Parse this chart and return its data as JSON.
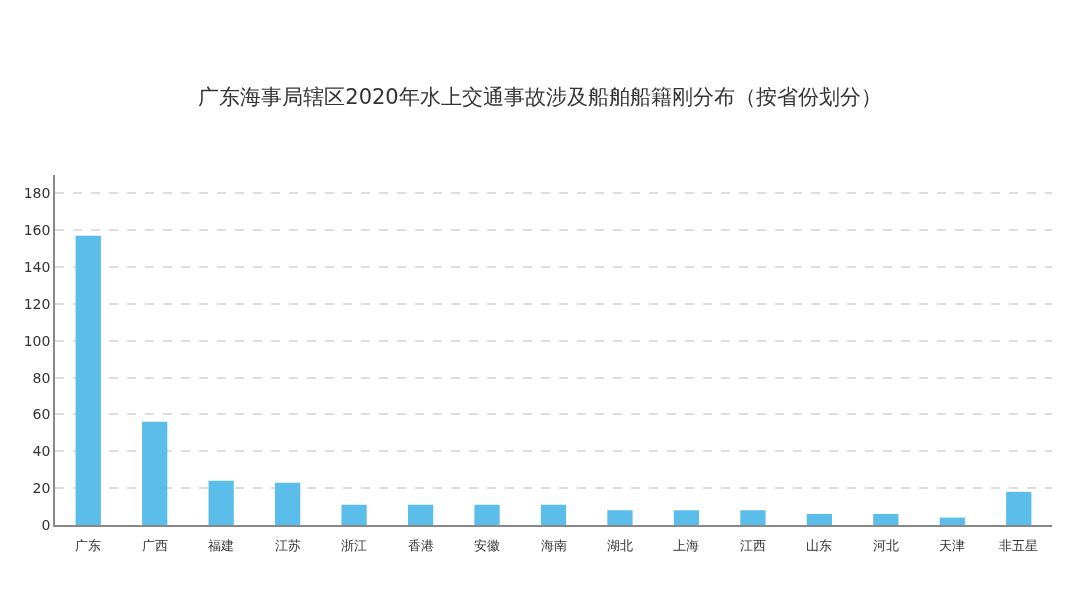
{
  "chart_data": {
    "type": "bar",
    "title": "广东海事局辖区2020年水上交通事故涉及船舶船籍刚分布（按省份划分）",
    "categories": [
      "广东",
      "广西",
      "福建",
      "江苏",
      "浙江",
      "香港",
      "安徽",
      "海南",
      "湖北",
      "上海",
      "江西",
      "山东",
      "河北",
      "天津",
      "非五星"
    ],
    "values": [
      157,
      56,
      24,
      23,
      11,
      11,
      11,
      11,
      8,
      8,
      8,
      6,
      6,
      4,
      18
    ],
    "color": "#5bbde9",
    "ylim": [
      0,
      190
    ],
    "yticks": [
      0,
      20,
      40,
      60,
      80,
      100,
      120,
      140,
      160,
      180
    ],
    "grid": "y"
  }
}
